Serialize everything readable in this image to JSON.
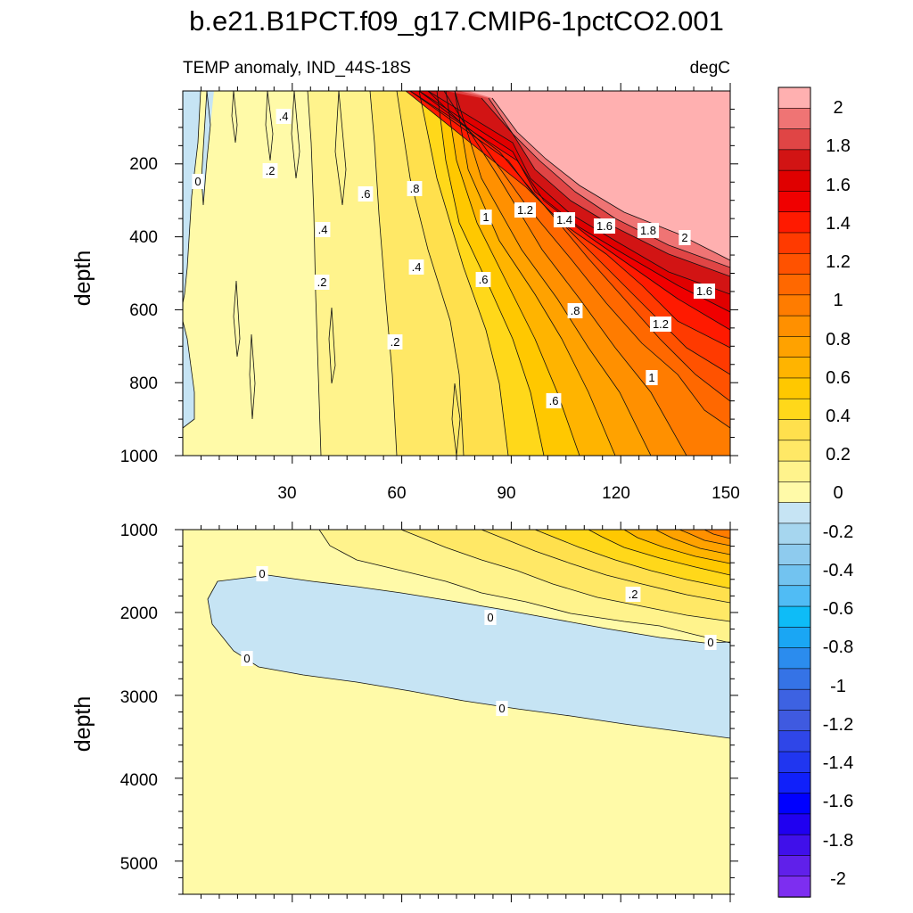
{
  "title": "b.e21.B1PCT.f09_g17.CMIP6-1pctCO2.001",
  "chart_data": [
    {
      "type": "heatmap",
      "panel": "upper",
      "title_left": "TEMP anomaly, IND_44S-18S",
      "title_right": "degC",
      "xlabel": "",
      "ylabel": "depth",
      "xlim": [
        0,
        150
      ],
      "ylim": [
        1000,
        0
      ],
      "x_ticks": [
        30,
        60,
        90,
        120,
        150
      ],
      "y_ticks": [
        200,
        400,
        600,
        800,
        1000
      ],
      "contour_interval": 0.1,
      "contour_labels": [
        {
          "text": ".4",
          "x": 28,
          "y": 65
        },
        {
          "text": ".2",
          "x": 24,
          "y": 225
        },
        {
          "text": "0",
          "x": 4,
          "y": 250
        },
        {
          "text": ".6",
          "x": 50,
          "y": 285
        },
        {
          "text": ".8",
          "x": 63,
          "y": 270
        },
        {
          "text": ".4",
          "x": 38,
          "y": 400
        },
        {
          "text": "1",
          "x": 84,
          "y": 340
        },
        {
          "text": "1.2",
          "x": 95,
          "y": 315
        },
        {
          "text": "1.4",
          "x": 104,
          "y": 350
        },
        {
          "text": "1.6",
          "x": 114,
          "y": 360
        },
        {
          "text": "1.8",
          "x": 127,
          "y": 380
        },
        {
          "text": "2",
          "x": 138,
          "y": 410
        },
        {
          "text": ".4",
          "x": 64,
          "y": 490
        },
        {
          "text": ".2",
          "x": 38,
          "y": 525
        },
        {
          "text": ".6",
          "x": 82,
          "y": 525
        },
        {
          "text": "1.6",
          "x": 143,
          "y": 550
        },
        {
          "text": ".8",
          "x": 108,
          "y": 630
        },
        {
          "text": "1.2",
          "x": 131,
          "y": 665
        },
        {
          "text": ".2",
          "x": 58,
          "y": 685
        },
        {
          "text": "1",
          "x": 128,
          "y": 815
        },
        {
          "text": ".6",
          "x": 104,
          "y": 850
        }
      ]
    },
    {
      "type": "heatmap",
      "panel": "lower",
      "xlabel": "",
      "ylabel": "depth",
      "xlim": [
        0,
        150
      ],
      "ylim": [
        5400,
        1000
      ],
      "y_ticks": [
        1000,
        2000,
        3000,
        4000,
        5000
      ],
      "contour_interval": 0.1,
      "contour_labels": [
        {
          "text": "0",
          "x": 22,
          "y": 1590
        },
        {
          "text": "0",
          "x": 84,
          "y": 2080
        },
        {
          "text": "0",
          "x": 145,
          "y": 2370
        },
        {
          "text": "0",
          "x": 18,
          "y": 2560
        },
        {
          "text": "0",
          "x": 87,
          "y": 3150
        },
        {
          "text": ".2",
          "x": 124,
          "y": 1800
        }
      ]
    }
  ],
  "colorbar": {
    "labels": [
      "2",
      "1.8",
      "1.6",
      "1.4",
      "1.2",
      "1",
      "0.8",
      "0.6",
      "0.4",
      "0.2",
      "0",
      "-0.2",
      "-0.4",
      "-0.6",
      "-0.8",
      "-1",
      "-1.2",
      "-1.4",
      "-1.6",
      "-1.8",
      "-2"
    ],
    "colors_top_to_bottom": [
      "#ffb0b0",
      "#ef7474",
      "#e04545",
      "#d21414",
      "#e00000",
      "#f00000",
      "#ff1a00",
      "#ff3a00",
      "#ff5200",
      "#ff6800",
      "#ff7c00",
      "#ff9000",
      "#ffa200",
      "#ffb400",
      "#ffc800",
      "#ffd81a",
      "#ffe04d",
      "#ffe866",
      "#fff38c",
      "#fffaa8",
      "#c6e4f4",
      "#a6d6ef",
      "#8ecbee",
      "#72c3f0",
      "#50bcf5",
      "#0ebcf7",
      "#1aa6f4",
      "#2b8cee",
      "#3573e6",
      "#3d62e2",
      "#3f5ae0",
      "#2f46e8",
      "#2036f0",
      "#1020fa",
      "#0000ff",
      "#2000f0",
      "#4010ea",
      "#6020ea",
      "#7d2ef0"
    ]
  }
}
